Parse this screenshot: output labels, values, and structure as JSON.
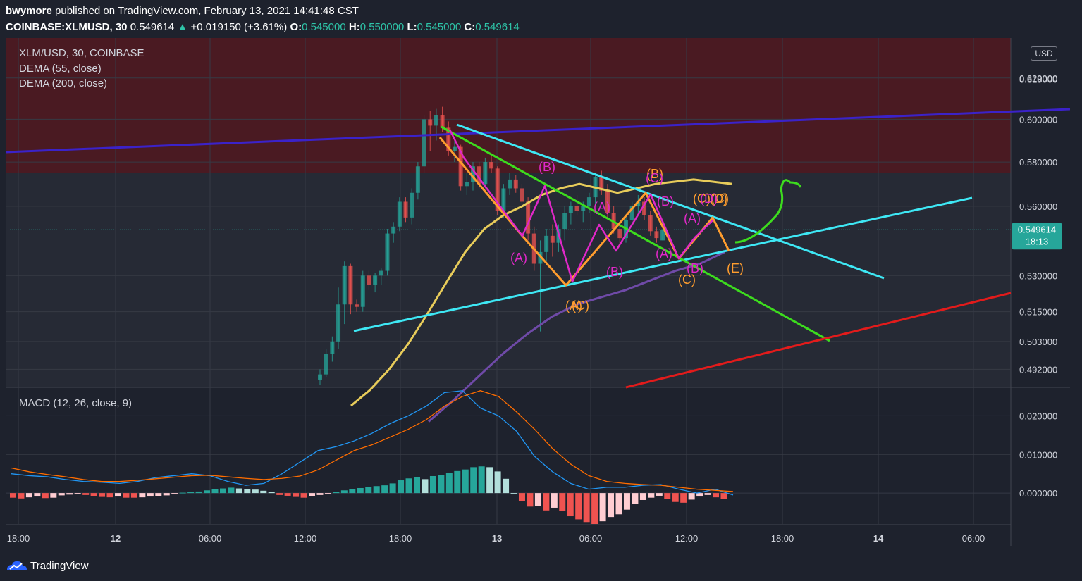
{
  "header": {
    "author": "bwymore",
    "published_text": "published on TradingView.com, February 13, 2021 14:41:48 CST",
    "symbol_line": "COINBASE:XLMUSD, 30",
    "last": "0.549614",
    "change_arrow": "▲",
    "change": "+0.019150 (+3.61%)",
    "o_label": "O:",
    "o": "0.545000",
    "h_label": "H:",
    "h": "0.550000",
    "l_label": "L:",
    "l": "0.545000",
    "c_label": "C:",
    "c": "0.549614"
  },
  "legend": {
    "title": "XLM/USD, 30, COINBASE",
    "dema55": "DEMA (55, close)",
    "dema200": "DEMA (200, close)",
    "macd": "MACD (12, 26, close, 9)"
  },
  "currency_button": "USD",
  "price_tag": {
    "value": "0.549614",
    "countdown": "18:13"
  },
  "footer": {
    "brand": "TradingView"
  },
  "colors": {
    "up": "#26a69a",
    "down": "#ef5350",
    "dema55": "#e8cc5a",
    "dema200": "#6f4aa8",
    "resistance_zone": "#4a1a22",
    "trend_cyan": "#3ee8f5",
    "trend_green": "#3ddc1e",
    "trend_blue": "#3b22c9",
    "trend_red": "#e31b1b",
    "wave_orange": "#ff9d2e",
    "wave_magenta": "#e028c8",
    "macd_line": "#2196f3",
    "signal_line": "#ff6d00"
  },
  "chart_data": [
    {
      "type": "candlestick",
      "title": "XLM/USD, 30, COINBASE",
      "x_tick_labels": [
        "18:00",
        "12",
        "06:00",
        "12:00",
        "18:00",
        "13",
        "06:00",
        "12:00",
        "18:00",
        "14",
        "06:00"
      ],
      "y_tick_labels": [
        "0.620000",
        "0.600000",
        "0.580000",
        "0.560000",
        "0.530000",
        "0.515000",
        "0.503000",
        "0.492000"
      ],
      "ylim": [
        0.485,
        0.64
      ],
      "y_scale": "log",
      "last_price": 0.549614,
      "candles_ohlc": [
        [
          0.488,
          0.492,
          0.486,
          0.49
        ],
        [
          0.49,
          0.5,
          0.489,
          0.498
        ],
        [
          0.498,
          0.505,
          0.495,
          0.503
        ],
        [
          0.503,
          0.525,
          0.5,
          0.518
        ],
        [
          0.518,
          0.536,
          0.51,
          0.534
        ],
        [
          0.534,
          0.535,
          0.514,
          0.518
        ],
        [
          0.518,
          0.52,
          0.515,
          0.517
        ],
        [
          0.517,
          0.532,
          0.515,
          0.53
        ],
        [
          0.53,
          0.532,
          0.524,
          0.526
        ],
        [
          0.526,
          0.531,
          0.523,
          0.53
        ],
        [
          0.53,
          0.533,
          0.526,
          0.532
        ],
        [
          0.532,
          0.55,
          0.53,
          0.548
        ],
        [
          0.548,
          0.553,
          0.544,
          0.551
        ],
        [
          0.551,
          0.564,
          0.549,
          0.562
        ],
        [
          0.562,
          0.564,
          0.553,
          0.555
        ],
        [
          0.555,
          0.568,
          0.552,
          0.566
        ],
        [
          0.566,
          0.58,
          0.563,
          0.578
        ],
        [
          0.578,
          0.602,
          0.575,
          0.6
        ],
        [
          0.6,
          0.604,
          0.585,
          0.597
        ],
        [
          0.597,
          0.605,
          0.59,
          0.602
        ],
        [
          0.602,
          0.606,
          0.594,
          0.596
        ],
        [
          0.596,
          0.599,
          0.583,
          0.585
        ],
        [
          0.585,
          0.59,
          0.58,
          0.587
        ],
        [
          0.587,
          0.588,
          0.567,
          0.569
        ],
        [
          0.569,
          0.575,
          0.565,
          0.571
        ],
        [
          0.571,
          0.58,
          0.567,
          0.578
        ],
        [
          0.578,
          0.58,
          0.568,
          0.57
        ],
        [
          0.57,
          0.582,
          0.568,
          0.58
        ],
        [
          0.58,
          0.583,
          0.575,
          0.577
        ],
        [
          0.577,
          0.578,
          0.556,
          0.558
        ],
        [
          0.558,
          0.57,
          0.555,
          0.568
        ],
        [
          0.568,
          0.575,
          0.565,
          0.572
        ],
        [
          0.572,
          0.574,
          0.566,
          0.568
        ],
        [
          0.568,
          0.57,
          0.56,
          0.562
        ],
        [
          0.562,
          0.564,
          0.545,
          0.548
        ],
        [
          0.548,
          0.551,
          0.532,
          0.535
        ],
        [
          0.535,
          0.545,
          0.507,
          0.54
        ],
        [
          0.54,
          0.55,
          0.536,
          0.547
        ],
        [
          0.547,
          0.552,
          0.538,
          0.544
        ],
        [
          0.544,
          0.552,
          0.54,
          0.55
        ],
        [
          0.55,
          0.56,
          0.545,
          0.557
        ],
        [
          0.557,
          0.562,
          0.552,
          0.56
        ],
        [
          0.56,
          0.565,
          0.556,
          0.558
        ],
        [
          0.558,
          0.562,
          0.553,
          0.56
        ],
        [
          0.56,
          0.566,
          0.557,
          0.564
        ],
        [
          0.564,
          0.575,
          0.56,
          0.573
        ],
        [
          0.573,
          0.576,
          0.565,
          0.567
        ],
        [
          0.567,
          0.57,
          0.555,
          0.557
        ],
        [
          0.557,
          0.56,
          0.548,
          0.55
        ],
        [
          0.55,
          0.552,
          0.542,
          0.546
        ],
        [
          0.546,
          0.556,
          0.544,
          0.554
        ],
        [
          0.554,
          0.562,
          0.552,
          0.56
        ],
        [
          0.56,
          0.565,
          0.556,
          0.562
        ],
        [
          0.562,
          0.564,
          0.554,
          0.556
        ],
        [
          0.556,
          0.558,
          0.547,
          0.549
        ],
        [
          0.549,
          0.551,
          0.544,
          0.546
        ],
        [
          0.545,
          0.55,
          0.545,
          0.5496
        ]
      ],
      "overlays": [
        {
          "name": "DEMA (55, close)",
          "values": [
            0.478,
            0.484,
            0.492,
            0.502,
            0.514,
            0.527,
            0.54,
            0.55,
            0.556,
            0.56,
            0.565,
            0.568,
            0.57,
            0.568,
            0.566,
            0.568,
            0.57,
            0.571,
            0.572,
            0.571,
            0.57
          ]
        },
        {
          "name": "DEMA (200, close)",
          "values": [
            0.472,
            0.48,
            0.489,
            0.498,
            0.506,
            0.513,
            0.518,
            0.521,
            0.524,
            0.528,
            0.532,
            0.535,
            0.54
          ]
        }
      ]
    },
    {
      "type": "macd",
      "title": "MACD (12, 26, close, 9)",
      "y_tick_labels": [
        "0.020000",
        "0.010000",
        "0.000000"
      ],
      "ylim": [
        -0.008,
        0.027
      ],
      "histogram": [
        -0.0012,
        -0.0014,
        -0.0011,
        -0.0009,
        -0.0013,
        -0.0012,
        -0.0006,
        -0.0004,
        -0.0002,
        -0.0005,
        -0.0008,
        -0.001,
        -0.0011,
        -0.0009,
        -0.0012,
        -0.0012,
        -0.0011,
        -0.0009,
        -0.0008,
        -0.0006,
        -0.0002,
        0.0001,
        0.0003,
        0.0004,
        0.0007,
        0.001,
        0.0012,
        0.0014,
        0.0012,
        0.001,
        0.0009,
        0.0006,
        0.0003,
        -0.0005,
        -0.0007,
        -0.001,
        -0.0012,
        -0.0008,
        -0.0005,
        -0.0002,
        0.0003,
        0.0007,
        0.0011,
        0.0013,
        0.0016,
        0.0018,
        0.002,
        0.0025,
        0.0033,
        0.0038,
        0.0041,
        0.0036,
        0.0044,
        0.0047,
        0.0052,
        0.0057,
        0.0061,
        0.0067,
        0.0069,
        0.0067,
        0.0056,
        0.0037,
        0.0,
        -0.002,
        -0.0035,
        -0.0033,
        -0.0045,
        -0.0038,
        -0.0046,
        -0.006,
        -0.0068,
        -0.0075,
        -0.008,
        -0.0073,
        -0.0062,
        -0.0055,
        -0.0043,
        -0.0028,
        -0.0018,
        -0.0012,
        -0.0007,
        -0.0015,
        -0.0023,
        -0.0025,
        -0.0017,
        -0.0009,
        -0.0005,
        -0.0011,
        -0.0015
      ],
      "macd_line": [
        0.005,
        0.0045,
        0.0042,
        0.0035,
        0.003,
        0.0028,
        0.0025,
        0.003,
        0.004,
        0.0045,
        0.005,
        0.0045,
        0.003,
        0.002,
        0.0025,
        0.005,
        0.008,
        0.011,
        0.012,
        0.0135,
        0.0155,
        0.018,
        0.02,
        0.0225,
        0.026,
        0.0265,
        0.022,
        0.02,
        0.016,
        0.0095,
        0.0055,
        0.0025,
        0.001,
        0.0015,
        0.0015,
        0.002,
        0.0022,
        0.001,
        0.0,
        0.001,
        -0.0005
      ],
      "signal_line": [
        0.0065,
        0.0055,
        0.0048,
        0.0042,
        0.0035,
        0.003,
        0.003,
        0.0033,
        0.0037,
        0.0041,
        0.0045,
        0.0046,
        0.0042,
        0.0038,
        0.0035,
        0.0038,
        0.0044,
        0.006,
        0.0085,
        0.011,
        0.0125,
        0.0145,
        0.0165,
        0.019,
        0.0225,
        0.025,
        0.0265,
        0.025,
        0.021,
        0.0165,
        0.0115,
        0.0075,
        0.0045,
        0.003,
        0.0025,
        0.0022,
        0.002,
        0.0015,
        0.001,
        0.0007,
        0.0004
      ]
    }
  ],
  "annotations": {
    "orange_labels": [
      "(B)",
      "(A)",
      "(C)",
      "(D)",
      "(C)",
      "(E)"
    ],
    "magenta_labels": [
      "(B)",
      "(A)",
      "(A)",
      "(B)",
      "(C)",
      "(B)",
      "(A)",
      "(B)",
      "(A)",
      "(D)"
    ]
  }
}
